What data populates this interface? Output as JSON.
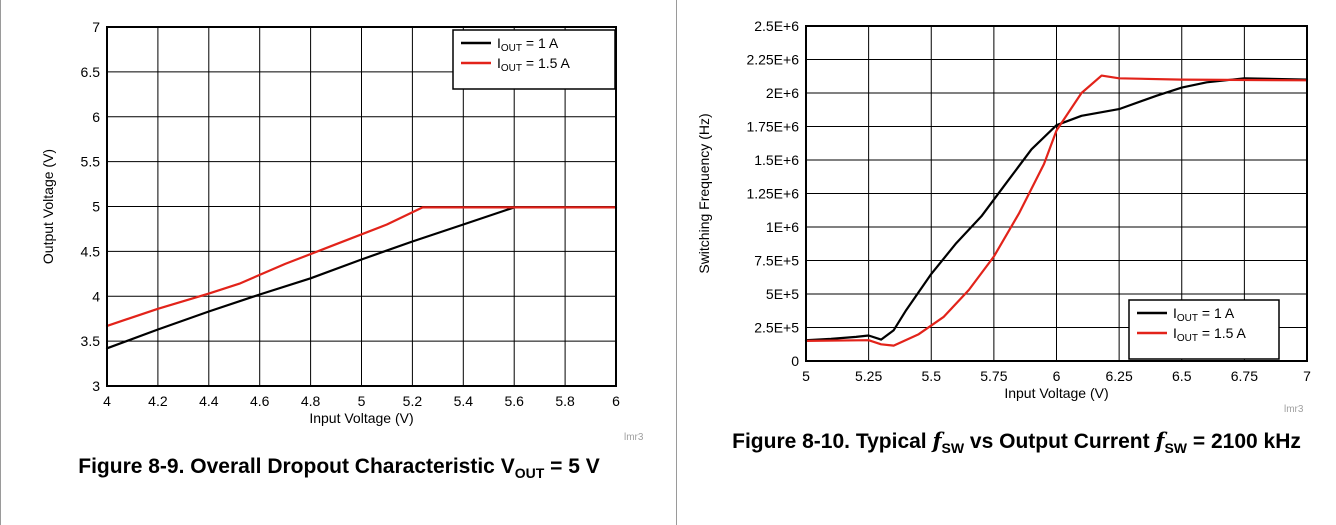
{
  "chart_data": [
    {
      "type": "line",
      "caption": {
        "prefix": "Figure 8-9. Overall Dropout Characteristic V",
        "sub": "OUT",
        "suffix": " = 5 V"
      },
      "xlabel": "Input Voltage (V)",
      "ylabel": "Output Voltage (V)",
      "xlim": [
        4,
        6
      ],
      "ylim": [
        3,
        7
      ],
      "x_ticks": [
        "4",
        "4.2",
        "4.4",
        "4.6",
        "4.8",
        "5",
        "5.2",
        "5.4",
        "5.6",
        "5.8",
        "6"
      ],
      "y_ticks": [
        "3",
        "3.5",
        "4",
        "4.5",
        "5",
        "5.5",
        "6",
        "6.5",
        "7"
      ],
      "grid": true,
      "legend_position": "top-right",
      "note": "lmr3",
      "series": [
        {
          "label": "I",
          "sub": "OUT",
          "suffix": " = 1 A",
          "color": "#000000",
          "points": [
            [
              4.0,
              3.42
            ],
            [
              4.2,
              3.63
            ],
            [
              4.4,
              3.83
            ],
            [
              4.6,
              4.02
            ],
            [
              4.8,
              4.2
            ],
            [
              5.0,
              4.41
            ],
            [
              5.2,
              4.61
            ],
            [
              5.4,
              4.8
            ],
            [
              5.6,
              4.99
            ],
            [
              6.0,
              4.99
            ]
          ]
        },
        {
          "label": "I",
          "sub": "OUT",
          "suffix": " = 1.5 A",
          "color": "#e2231a",
          "points": [
            [
              4.0,
              3.67
            ],
            [
              4.2,
              3.86
            ],
            [
              4.4,
              4.03
            ],
            [
              4.52,
              4.14
            ],
            [
              4.7,
              4.36
            ],
            [
              4.9,
              4.58
            ],
            [
              5.1,
              4.8
            ],
            [
              5.24,
              4.99
            ],
            [
              6.0,
              4.99
            ]
          ]
        }
      ]
    },
    {
      "type": "line",
      "caption": {
        "prefix": "Figure 8-10. Typical ",
        "f": "f",
        "fsub": "SW",
        "mid": " vs Output Current ",
        "f2": "f",
        "f2sub": "SW",
        "suffix": " = 2100 kHz"
      },
      "xlabel": "Input Voltage (V)",
      "ylabel": "Switching Frequency (Hz)",
      "xlim": [
        5,
        7
      ],
      "ylim": [
        0,
        2500000
      ],
      "x_ticks": [
        "5",
        "5.25",
        "5.5",
        "5.75",
        "6",
        "6.25",
        "6.5",
        "6.75",
        "7"
      ],
      "y_ticks": [
        "0",
        "2.5E+5",
        "5E+5",
        "7.5E+5",
        "1E+6",
        "1.25E+6",
        "1.5E+6",
        "1.75E+6",
        "2E+6",
        "2.25E+6",
        "2.5E+6"
      ],
      "grid": true,
      "legend_position": "bottom-right",
      "note": "lmr3",
      "series": [
        {
          "label": "I",
          "sub": "OUT",
          "suffix": " = 1 A",
          "color": "#000000",
          "points": [
            [
              5.0,
              155000
            ],
            [
              5.1,
              165000
            ],
            [
              5.2,
              180000
            ],
            [
              5.25,
              190000
            ],
            [
              5.3,
              160000
            ],
            [
              5.35,
              230000
            ],
            [
              5.4,
              380000
            ],
            [
              5.5,
              650000
            ],
            [
              5.6,
              880000
            ],
            [
              5.7,
              1080000
            ],
            [
              5.8,
              1330000
            ],
            [
              5.9,
              1580000
            ],
            [
              6.0,
              1760000
            ],
            [
              6.1,
              1830000
            ],
            [
              6.25,
              1880000
            ],
            [
              6.4,
              1980000
            ],
            [
              6.5,
              2040000
            ],
            [
              6.6,
              2080000
            ],
            [
              6.75,
              2110000
            ],
            [
              7.0,
              2100000
            ]
          ]
        },
        {
          "label": "I",
          "sub": "OUT",
          "suffix": " = 1.5 A",
          "color": "#e2231a",
          "points": [
            [
              5.0,
              150000
            ],
            [
              5.25,
              155000
            ],
            [
              5.3,
              125000
            ],
            [
              5.35,
              115000
            ],
            [
              5.45,
              200000
            ],
            [
              5.55,
              330000
            ],
            [
              5.65,
              530000
            ],
            [
              5.75,
              780000
            ],
            [
              5.85,
              1100000
            ],
            [
              5.95,
              1470000
            ],
            [
              6.0,
              1720000
            ],
            [
              6.1,
              2000000
            ],
            [
              6.18,
              2130000
            ],
            [
              6.25,
              2110000
            ],
            [
              6.5,
              2100000
            ],
            [
              7.0,
              2095000
            ]
          ]
        }
      ]
    }
  ]
}
